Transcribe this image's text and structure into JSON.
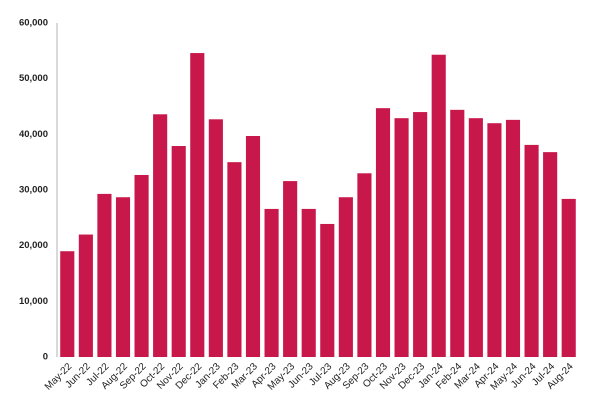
{
  "chart_data": {
    "type": "bar",
    "categories": [
      "May-22",
      "Jun-22",
      "Jul-22",
      "Aug-22",
      "Sep-22",
      "Oct-22",
      "Nov-22",
      "Dec-22",
      "Jan-23",
      "Feb-23",
      "Mar-23",
      "Apr-23",
      "May-23",
      "Jun-23",
      "Jul-23",
      "Aug-23",
      "Sep-23",
      "Oct-23",
      "Nov-23",
      "Dec-23",
      "Jan-24",
      "Feb-24",
      "Mar-24",
      "Apr-24",
      "May-24",
      "Jun-24",
      "Jul-24",
      "Aug-24"
    ],
    "values": [
      19000,
      22000,
      29300,
      28700,
      32700,
      43600,
      37900,
      54600,
      42700,
      35000,
      39700,
      26600,
      31600,
      26600,
      23900,
      28700,
      33000,
      44700,
      42900,
      44000,
      54300,
      44400,
      42900,
      42000,
      42600,
      38100,
      36800,
      28400
    ],
    "color": "#c8174a",
    "ylim": [
      0,
      60000
    ],
    "yticks": [
      0,
      {
        "value": 10000,
        "label": "10,000"
      },
      {
        "value": 20000,
        "label": "20,000"
      },
      {
        "value": 30000,
        "label": "30,000"
      },
      {
        "value": 40000,
        "label": "40,000"
      },
      {
        "value": 50000,
        "label": "50,000"
      },
      {
        "value": 60000,
        "label": "60,000"
      }
    ],
    "grid": false
  }
}
